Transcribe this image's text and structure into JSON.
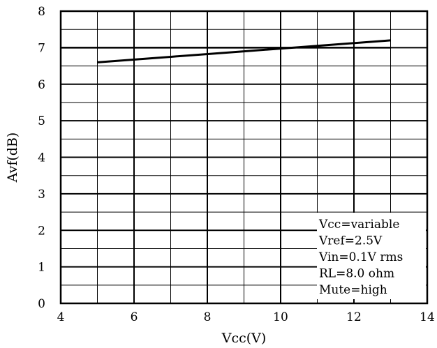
{
  "chart_data": {
    "type": "line",
    "title": "",
    "xlabel": "Vcc(V)",
    "ylabel": "Avf(dB)",
    "xlim": [
      4,
      14
    ],
    "ylim": [
      0,
      8
    ],
    "x_ticks": [
      "4",
      "6",
      "8",
      "10",
      "12",
      "14"
    ],
    "y_ticks": [
      "0",
      "1",
      "2",
      "3",
      "4",
      "5",
      "6",
      "7",
      "8"
    ],
    "grid": true,
    "series": [
      {
        "x": [
          5,
          7,
          9,
          11,
          13
        ],
        "y": [
          6.6,
          6.75,
          6.9,
          7.05,
          7.2
        ]
      }
    ],
    "reference_lines": [
      {
        "y": 7.0
      }
    ],
    "annotations": [
      "Vcc=variable",
      "Vref=2.5V",
      "Vin=0.1V rms",
      "RL=8.0 ohm",
      "Mute=high"
    ]
  }
}
